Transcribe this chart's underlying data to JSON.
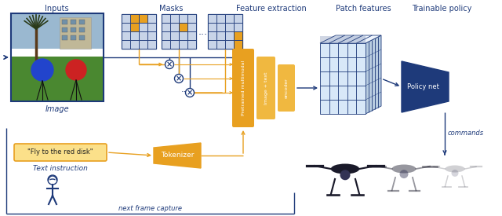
{
  "bg_color": "#ffffff",
  "navy": "#1e3a7a",
  "gold": "#E8A020",
  "gold_light": "#F0B840",
  "labels": {
    "inputs": "Inputs",
    "masks": "Masks",
    "feature_extraction": "Feature extraction",
    "patch_features": "Patch features",
    "trainable_policy": "Trainable policy",
    "image": "Image",
    "text_instruction": "Text instruction",
    "next_frame_capture": "next frame capture",
    "commands": "commands",
    "pretrained": "Pretrained multimodal",
    "image_text": "Image + text",
    "encoder": "encoder",
    "policy_net": "Policy net",
    "tokenizer": "Tokenizer",
    "fly_text": "\"Fly to the red disk\""
  },
  "mask_cell_color": "#c8d4e8",
  "mask_edge_color": "#1e3a7a",
  "cube_face_color": "#d8e8f8",
  "cube_top_color": "#eef4fc",
  "cube_right_color": "#b8cce0"
}
